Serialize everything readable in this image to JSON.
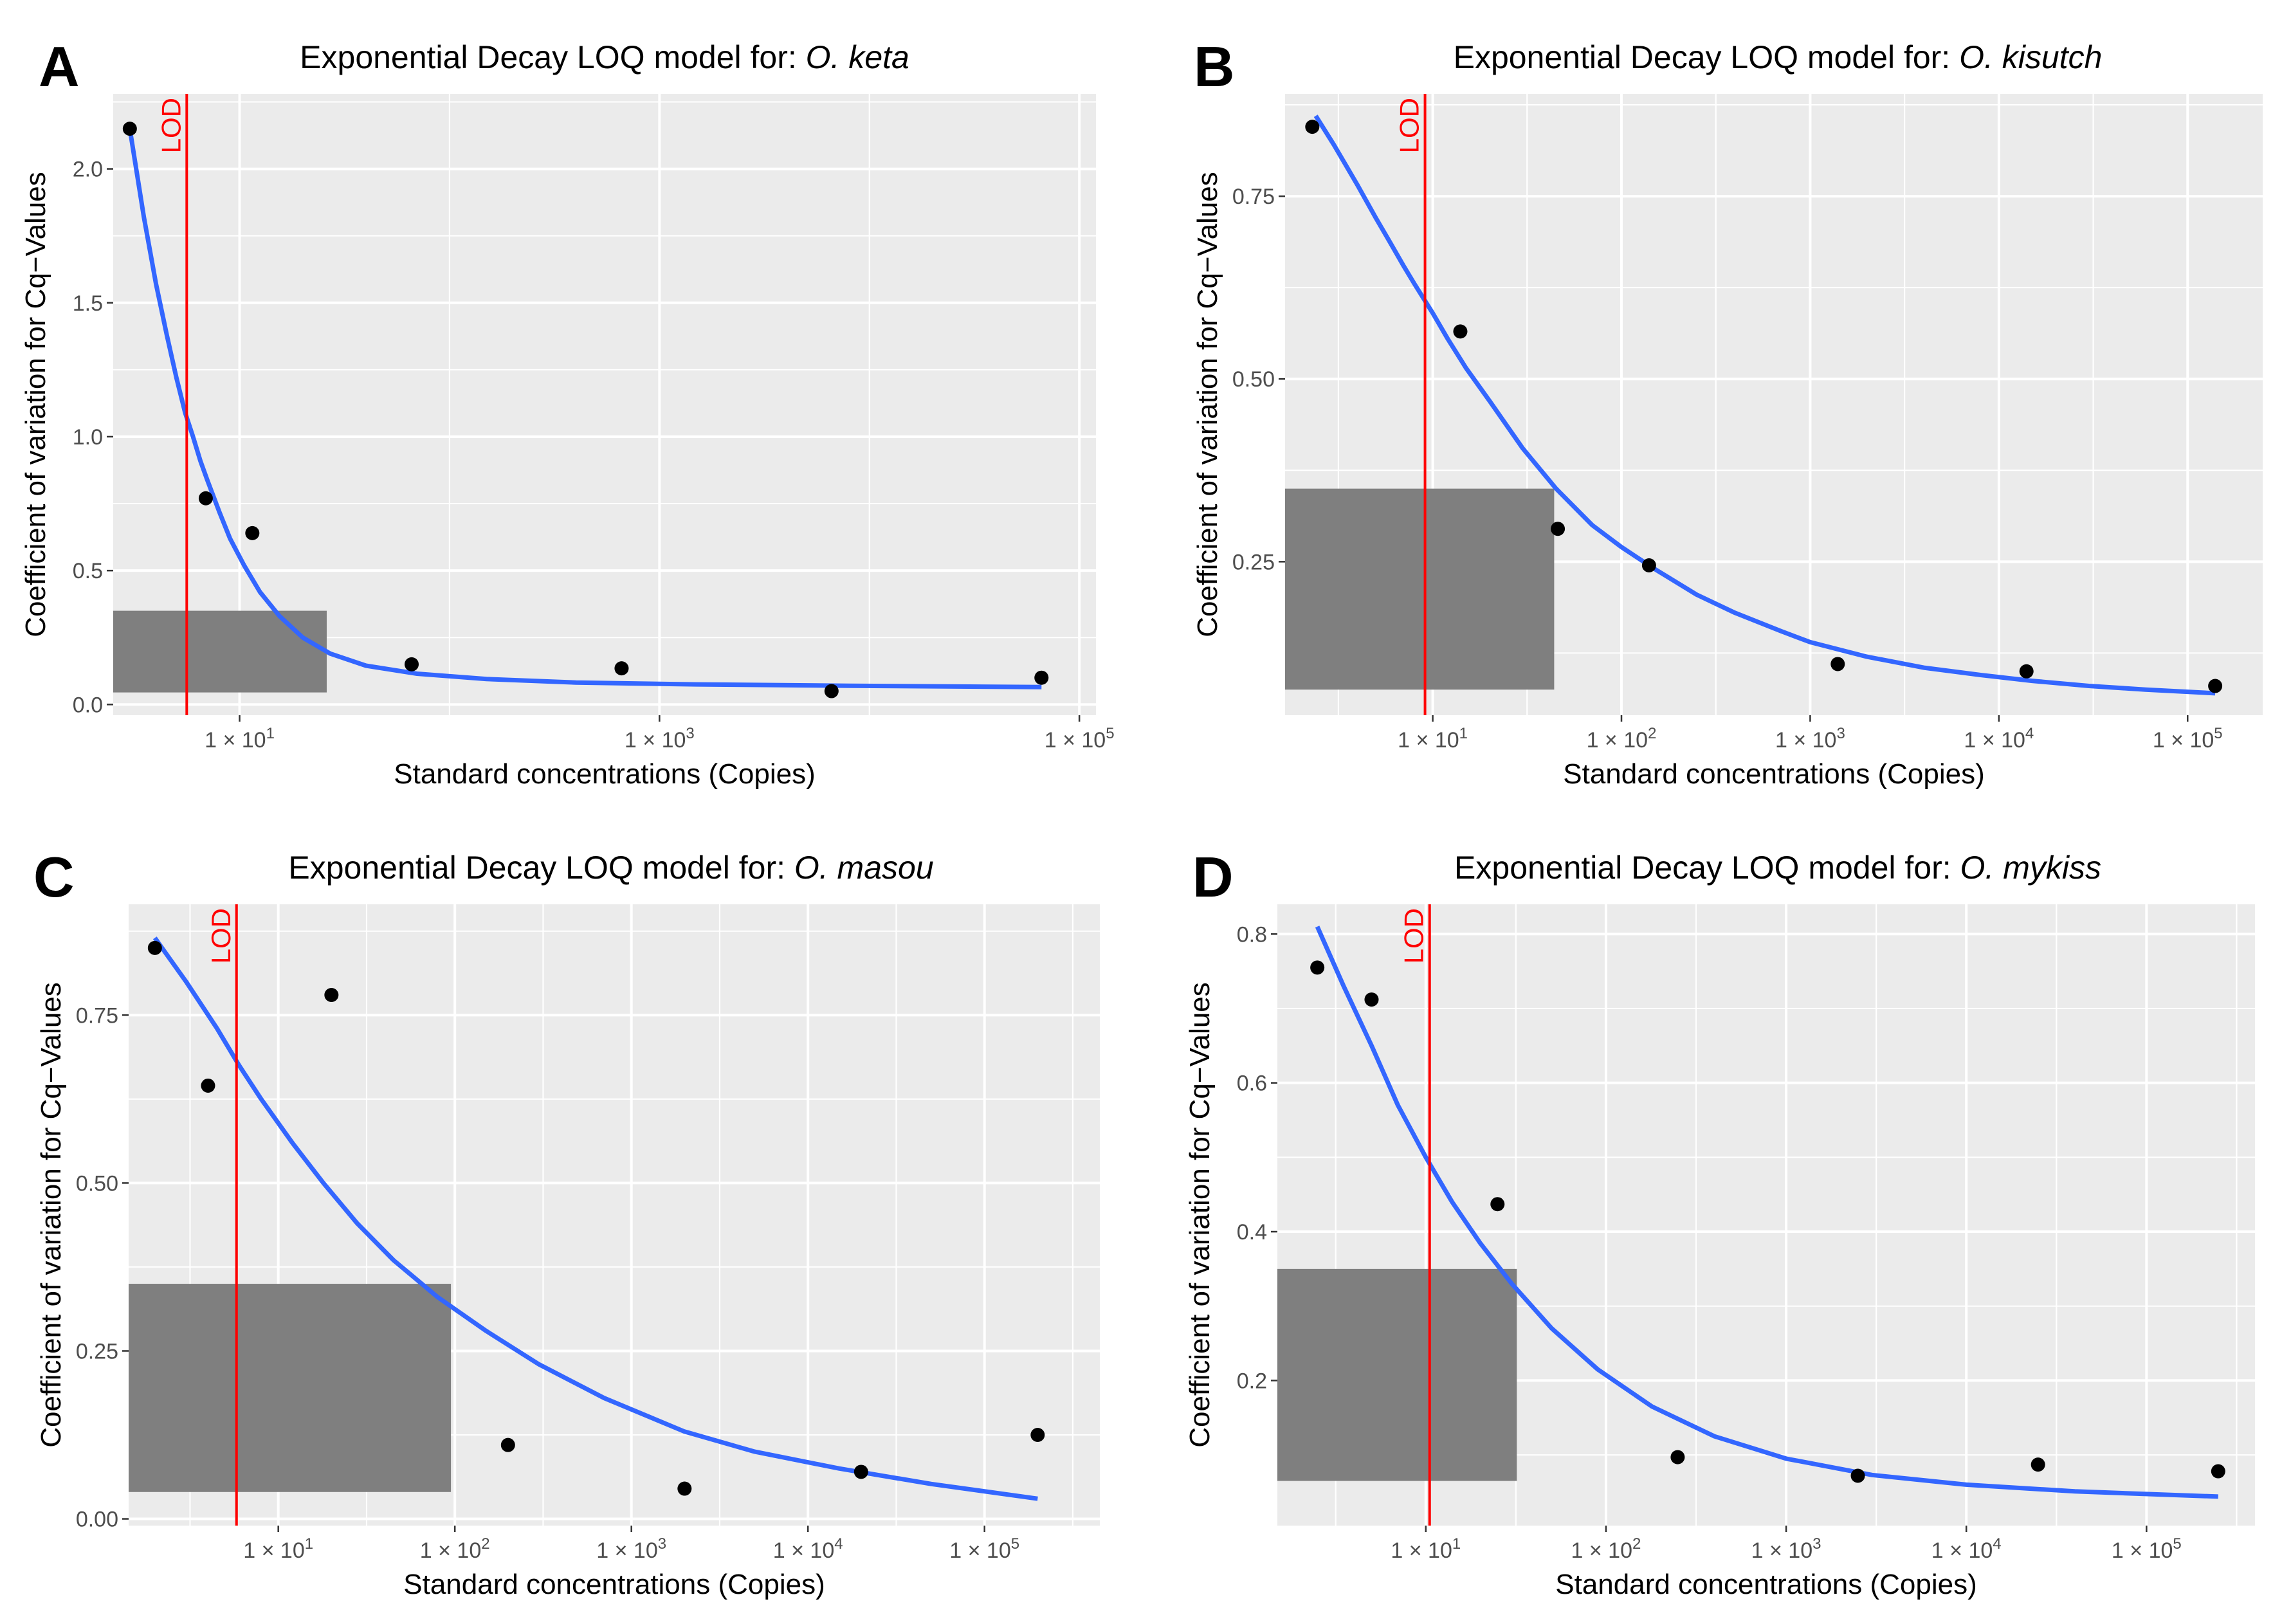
{
  "panels": [
    {
      "letter": "A",
      "chart_data": {
        "type": "scatter",
        "title_prefix": "Exponential Decay LOQ model for: ",
        "species": "O. keta",
        "xlabel": "Standard concentrations (Copies)",
        "ylabel": "Coefficient of variation for Cq−Values",
        "x_scale": "log10",
        "xlim": [
          2.5,
          120000
        ],
        "ylim": [
          -0.04,
          2.28
        ],
        "x_ticks": [
          {
            "value": 10,
            "mant": "1 × 10",
            "exp": "1"
          },
          {
            "value": 1000,
            "mant": "1 × 10",
            "exp": "3"
          },
          {
            "value": 100000,
            "mant": "1 × 10",
            "exp": "5"
          }
        ],
        "y_ticks": [
          {
            "value": 0.0,
            "label": "0.0"
          },
          {
            "value": 0.5,
            "label": "0.5"
          },
          {
            "value": 1.0,
            "label": "1.0"
          },
          {
            "value": 1.5,
            "label": "1.5"
          },
          {
            "value": 2.0,
            "label": "2.0"
          }
        ],
        "points": [
          {
            "x": 3.0,
            "y": 2.15
          },
          {
            "x": 6.9,
            "y": 0.77
          },
          {
            "x": 11.5,
            "y": 0.64
          },
          {
            "x": 66,
            "y": 0.15
          },
          {
            "x": 660,
            "y": 0.135
          },
          {
            "x": 6600,
            "y": 0.05
          },
          {
            "x": 66000,
            "y": 0.1
          }
        ],
        "fit_curve": {
          "series_name": "Exponential decay fit",
          "x": [
            3.0,
            3.5,
            4.0,
            4.5,
            5.0,
            5.5,
            6.0,
            6.5,
            7.0,
            8.0,
            9.0,
            10.5,
            12.5,
            15.5,
            20,
            27,
            40,
            70,
            150,
            400,
            1500,
            8000,
            66000
          ],
          "y": [
            2.15,
            1.82,
            1.57,
            1.38,
            1.22,
            1.09,
            1.0,
            0.91,
            0.84,
            0.72,
            0.62,
            0.52,
            0.42,
            0.33,
            0.25,
            0.19,
            0.145,
            0.115,
            0.095,
            0.082,
            0.075,
            0.07,
            0.065
          ]
        },
        "lod": {
          "x": 5.6,
          "label": "LOD"
        },
        "loq_box": {
          "x0": 2.5,
          "x1": 26,
          "y0": 0.045,
          "y1": 0.35
        }
      }
    },
    {
      "letter": "B",
      "chart_data": {
        "type": "scatter",
        "title_prefix": "Exponential Decay LOQ model for: ",
        "species": "O. kisutch",
        "xlabel": "Standard concentrations (Copies)",
        "ylabel": "Coefficient of variation for Cq−Values",
        "x_scale": "log10",
        "xlim": [
          1.65,
          250000
        ],
        "ylim": [
          0.04,
          0.89
        ],
        "x_ticks": [
          {
            "value": 10,
            "mant": "1 × 10",
            "exp": "1"
          },
          {
            "value": 100,
            "mant": "1 × 10",
            "exp": "2"
          },
          {
            "value": 1000,
            "mant": "1 × 10",
            "exp": "3"
          },
          {
            "value": 10000,
            "mant": "1 × 10",
            "exp": "4"
          },
          {
            "value": 100000,
            "mant": "1 × 10",
            "exp": "5"
          }
        ],
        "y_ticks": [
          {
            "value": 0.25,
            "label": "0.25"
          },
          {
            "value": 0.5,
            "label": "0.50"
          },
          {
            "value": 0.75,
            "label": "0.75"
          }
        ],
        "points": [
          {
            "x": 2.3,
            "y": 0.845
          },
          {
            "x": 14,
            "y": 0.565
          },
          {
            "x": 46,
            "y": 0.295
          },
          {
            "x": 140,
            "y": 0.245
          },
          {
            "x": 1400,
            "y": 0.11
          },
          {
            "x": 14000,
            "y": 0.1
          },
          {
            "x": 140000,
            "y": 0.08
          }
        ],
        "fit_curve": {
          "series_name": "Exponential decay fit",
          "x": [
            2.4,
            3,
            4,
            5,
            6,
            7,
            8,
            10,
            12,
            15,
            20,
            30,
            45,
            70,
            100,
            150,
            250,
            400,
            700,
            1000,
            2000,
            4000,
            8000,
            15000,
            30000,
            60000,
            140000
          ],
          "y": [
            0.86,
            0.82,
            0.765,
            0.72,
            0.685,
            0.655,
            0.63,
            0.59,
            0.555,
            0.515,
            0.47,
            0.405,
            0.35,
            0.3,
            0.27,
            0.24,
            0.205,
            0.18,
            0.155,
            0.14,
            0.12,
            0.105,
            0.095,
            0.087,
            0.08,
            0.075,
            0.07
          ]
        },
        "lod": {
          "x": 9.1,
          "label": "LOD"
        },
        "loq_box": {
          "x0": 1.65,
          "x1": 44,
          "y0": 0.075,
          "y1": 0.35
        }
      }
    },
    {
      "letter": "C",
      "chart_data": {
        "type": "scatter",
        "title_prefix": "Exponential Decay LOQ model for: ",
        "species": "O. masou",
        "xlabel": "Standard concentrations (Copies)",
        "ylabel": "Coefficient of variation for Cq−Values",
        "x_scale": "log10",
        "xlim": [
          1.42,
          450000
        ],
        "ylim": [
          -0.01,
          0.915
        ],
        "x_ticks": [
          {
            "value": 10,
            "mant": "1 × 10",
            "exp": "1"
          },
          {
            "value": 100,
            "mant": "1 × 10",
            "exp": "2"
          },
          {
            "value": 1000,
            "mant": "1 × 10",
            "exp": "3"
          },
          {
            "value": 10000,
            "mant": "1 × 10",
            "exp": "4"
          },
          {
            "value": 100000,
            "mant": "1 × 10",
            "exp": "5"
          }
        ],
        "y_ticks": [
          {
            "value": 0.0,
            "label": "0.00"
          },
          {
            "value": 0.25,
            "label": "0.25"
          },
          {
            "value": 0.5,
            "label": "0.50"
          },
          {
            "value": 0.75,
            "label": "0.75"
          }
        ],
        "points": [
          {
            "x": 2.0,
            "y": 0.85
          },
          {
            "x": 4.0,
            "y": 0.645
          },
          {
            "x": 20,
            "y": 0.78
          },
          {
            "x": 200,
            "y": 0.11
          },
          {
            "x": 2000,
            "y": 0.045
          },
          {
            "x": 20000,
            "y": 0.07
          },
          {
            "x": 200000,
            "y": 0.125
          }
        ],
        "fit_curve": {
          "series_name": "Exponential decay fit",
          "x": [
            2.0,
            3.0,
            4.5,
            6,
            8,
            12,
            18,
            28,
            45,
            80,
            150,
            300,
            700,
            2000,
            5000,
            15000,
            50000,
            200000
          ],
          "y": [
            0.865,
            0.8,
            0.73,
            0.675,
            0.625,
            0.56,
            0.5,
            0.44,
            0.385,
            0.33,
            0.28,
            0.23,
            0.18,
            0.13,
            0.1,
            0.075,
            0.052,
            0.03
          ]
        },
        "lod": {
          "x": 5.8,
          "label": "LOD"
        },
        "loq_box": {
          "x0": 1.42,
          "x1": 95,
          "y0": 0.04,
          "y1": 0.35
        }
      }
    },
    {
      "letter": "D",
      "chart_data": {
        "type": "scatter",
        "title_prefix": "Exponential Decay LOQ model for: ",
        "species": "O. mykiss",
        "xlabel": "Standard concentrations (Copies)",
        "ylabel": "Coefficient of variation for Cq−Values",
        "x_scale": "log10",
        "xlim": [
          1.5,
          400000
        ],
        "ylim": [
          0.005,
          0.84
        ],
        "x_ticks": [
          {
            "value": 10,
            "mant": "1 × 10",
            "exp": "1"
          },
          {
            "value": 100,
            "mant": "1 × 10",
            "exp": "2"
          },
          {
            "value": 1000,
            "mant": "1 × 10",
            "exp": "3"
          },
          {
            "value": 10000,
            "mant": "1 × 10",
            "exp": "4"
          },
          {
            "value": 100000,
            "mant": "1 × 10",
            "exp": "5"
          }
        ],
        "y_ticks": [
          {
            "value": 0.2,
            "label": "0.2"
          },
          {
            "value": 0.4,
            "label": "0.4"
          },
          {
            "value": 0.6,
            "label": "0.6"
          },
          {
            "value": 0.8,
            "label": "0.8"
          }
        ],
        "points": [
          {
            "x": 2.5,
            "y": 0.755
          },
          {
            "x": 5.0,
            "y": 0.712
          },
          {
            "x": 25,
            "y": 0.437
          },
          {
            "x": 250,
            "y": 0.097
          },
          {
            "x": 2500,
            "y": 0.072
          },
          {
            "x": 25000,
            "y": 0.087
          },
          {
            "x": 250000,
            "y": 0.078
          }
        ],
        "fit_curve": {
          "series_name": "Exponential decay fit",
          "x": [
            2.5,
            3.5,
            5,
            7,
            10,
            14,
            20,
            30,
            50,
            90,
            180,
            400,
            1000,
            3000,
            10000,
            40000,
            250000
          ],
          "y": [
            0.81,
            0.73,
            0.65,
            0.57,
            0.5,
            0.44,
            0.385,
            0.33,
            0.27,
            0.215,
            0.165,
            0.125,
            0.095,
            0.073,
            0.06,
            0.051,
            0.044
          ]
        },
        "lod": {
          "x": 10.5,
          "label": "LOD"
        },
        "loq_box": {
          "x0": 1.5,
          "x1": 32,
          "y0": 0.065,
          "y1": 0.35
        }
      }
    }
  ]
}
